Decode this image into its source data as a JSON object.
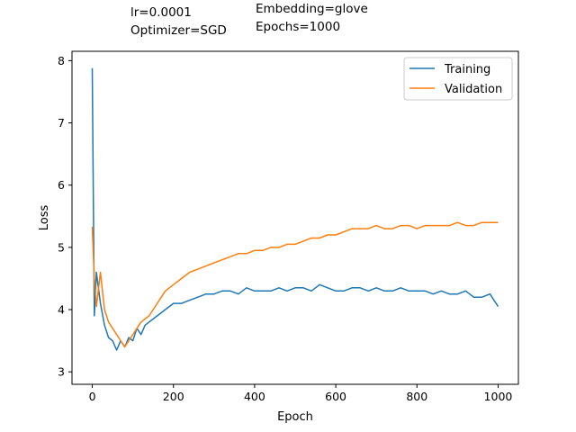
{
  "annotations": {
    "lr": "lr=0.0001",
    "optimizer": "Optimizer=SGD",
    "embedding": "Embedding=glove",
    "epochs": "Epochs=1000"
  },
  "chart_data": {
    "type": "line",
    "title": "",
    "xlabel": "Epoch",
    "ylabel": "Loss",
    "xlim": [
      -50,
      1050
    ],
    "ylim": [
      2.8,
      8.15
    ],
    "xticks": [
      0,
      200,
      400,
      600,
      800,
      1000
    ],
    "yticks": [
      3,
      4,
      5,
      6,
      7,
      8
    ],
    "grid": false,
    "legend_position": "top-right",
    "series": [
      {
        "name": "Training",
        "color": "#1f77b4",
        "x": [
          0,
          5,
          10,
          20,
          30,
          40,
          50,
          60,
          70,
          80,
          90,
          100,
          110,
          120,
          130,
          140,
          150,
          160,
          170,
          180,
          190,
          200,
          220,
          240,
          260,
          280,
          300,
          320,
          340,
          360,
          380,
          400,
          420,
          440,
          460,
          480,
          500,
          520,
          540,
          560,
          580,
          600,
          620,
          640,
          660,
          680,
          700,
          720,
          740,
          760,
          780,
          800,
          820,
          840,
          860,
          880,
          900,
          920,
          940,
          960,
          980,
          1000
        ],
        "y": [
          7.88,
          3.9,
          4.6,
          4.1,
          3.75,
          3.55,
          3.5,
          3.35,
          3.5,
          3.4,
          3.55,
          3.5,
          3.7,
          3.6,
          3.75,
          3.8,
          3.85,
          3.9,
          3.95,
          4.0,
          4.05,
          4.1,
          4.1,
          4.15,
          4.2,
          4.25,
          4.25,
          4.3,
          4.3,
          4.25,
          4.35,
          4.3,
          4.3,
          4.3,
          4.35,
          4.3,
          4.35,
          4.35,
          4.3,
          4.4,
          4.35,
          4.3,
          4.3,
          4.35,
          4.35,
          4.3,
          4.35,
          4.3,
          4.3,
          4.35,
          4.3,
          4.3,
          4.3,
          4.25,
          4.3,
          4.25,
          4.25,
          4.3,
          4.2,
          4.2,
          4.25,
          4.05
        ]
      },
      {
        "name": "Validation",
        "color": "#ff7f0e",
        "x": [
          0,
          5,
          10,
          20,
          30,
          40,
          50,
          60,
          70,
          80,
          90,
          100,
          110,
          120,
          130,
          140,
          150,
          160,
          170,
          180,
          190,
          200,
          220,
          240,
          260,
          280,
          300,
          320,
          340,
          360,
          380,
          400,
          420,
          440,
          460,
          480,
          500,
          520,
          540,
          560,
          580,
          600,
          620,
          640,
          660,
          680,
          700,
          720,
          740,
          760,
          780,
          800,
          820,
          840,
          860,
          880,
          900,
          920,
          940,
          960,
          980,
          1000
        ],
        "y": [
          5.33,
          4.5,
          4.05,
          4.6,
          4.0,
          3.8,
          3.7,
          3.6,
          3.5,
          3.4,
          3.5,
          3.6,
          3.7,
          3.8,
          3.85,
          3.9,
          4.0,
          4.1,
          4.2,
          4.3,
          4.35,
          4.4,
          4.5,
          4.6,
          4.65,
          4.7,
          4.75,
          4.8,
          4.85,
          4.9,
          4.9,
          4.95,
          4.95,
          5.0,
          5.0,
          5.05,
          5.05,
          5.1,
          5.15,
          5.15,
          5.2,
          5.2,
          5.25,
          5.3,
          5.3,
          5.3,
          5.35,
          5.3,
          5.3,
          5.35,
          5.35,
          5.3,
          5.35,
          5.35,
          5.35,
          5.35,
          5.4,
          5.35,
          5.35,
          5.4,
          5.4,
          5.4
        ]
      }
    ]
  }
}
